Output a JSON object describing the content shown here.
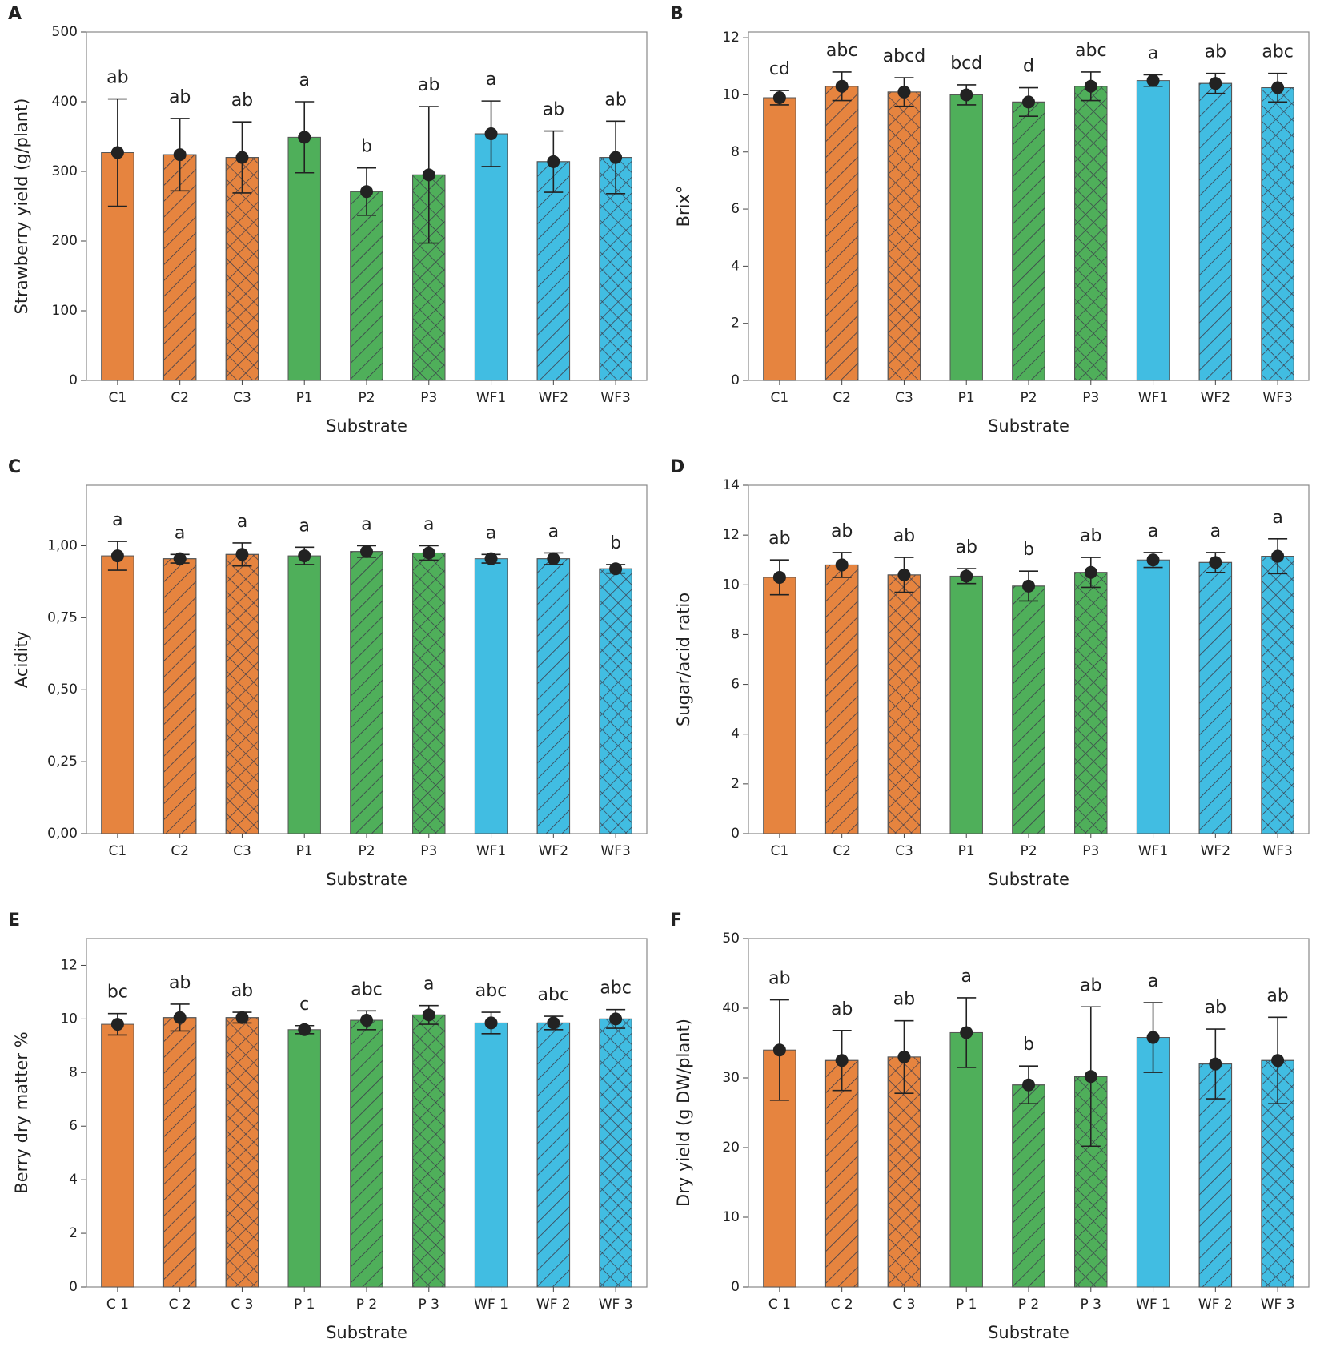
{
  "chart_data": [
    {
      "type": "bar",
      "panel": "A",
      "y_label": "Strawberry yield (g/plant)",
      "x_label": "Substrate",
      "categories": [
        "C1",
        "C2",
        "C3",
        "P1",
        "P2",
        "P3",
        "WF1",
        "WF2",
        "WF3"
      ],
      "values": [
        327,
        324,
        320,
        349,
        271,
        295,
        354,
        314,
        320
      ],
      "errors": [
        77,
        52,
        51,
        51,
        34,
        98,
        47,
        44,
        52
      ],
      "annotations": [
        "ab",
        "ab",
        "ab",
        "a",
        "b",
        "ab",
        "a",
        "ab",
        "ab"
      ],
      "colors": [
        "#e6843f",
        "#e6843f",
        "#e6843f",
        "#4faf5a",
        "#4faf5a",
        "#4faf5a",
        "#41bde2",
        "#41bde2",
        "#41bde2"
      ],
      "hatch": [
        "none",
        "diagonal",
        "cross",
        "none",
        "diagonal",
        "cross",
        "none",
        "diagonal",
        "cross"
      ],
      "ylim": [
        0,
        500
      ],
      "yticks": [
        0,
        100,
        200,
        300,
        400,
        500
      ]
    },
    {
      "type": "bar",
      "panel": "B",
      "y_label": "Brix°",
      "x_label": "Substrate",
      "categories": [
        "C1",
        "C2",
        "C3",
        "P1",
        "P2",
        "P3",
        "WF1",
        "WF2",
        "WF3"
      ],
      "values": [
        9.9,
        10.3,
        10.1,
        10.0,
        9.75,
        10.3,
        10.5,
        10.4,
        10.25
      ],
      "errors": [
        0.25,
        0.5,
        0.5,
        0.35,
        0.5,
        0.5,
        0.2,
        0.35,
        0.5
      ],
      "annotations": [
        "cd",
        "abc",
        "abcd",
        "bcd",
        "d",
        "abc",
        "a",
        "ab",
        "abc"
      ],
      "colors": [
        "#e6843f",
        "#e6843f",
        "#e6843f",
        "#4faf5a",
        "#4faf5a",
        "#4faf5a",
        "#41bde2",
        "#41bde2",
        "#41bde2"
      ],
      "hatch": [
        "none",
        "diagonal",
        "cross",
        "none",
        "diagonal",
        "cross",
        "none",
        "diagonal",
        "cross"
      ],
      "ylim": [
        0,
        12.2
      ],
      "yticks": [
        0,
        2,
        4,
        6,
        8,
        10,
        12
      ]
    },
    {
      "type": "bar",
      "panel": "C",
      "y_label": "Acidity",
      "x_label": "Substrate",
      "categories": [
        "C1",
        "C2",
        "C3",
        "P1",
        "P2",
        "P3",
        "WF1",
        "WF2",
        "WF3"
      ],
      "values": [
        0.965,
        0.955,
        0.97,
        0.965,
        0.98,
        0.975,
        0.955,
        0.955,
        0.92
      ],
      "errors": [
        0.05,
        0.015,
        0.04,
        0.03,
        0.02,
        0.025,
        0.015,
        0.02,
        0.015
      ],
      "annotations": [
        "a",
        "a",
        "a",
        "a",
        "a",
        "a",
        "a",
        "a",
        "b"
      ],
      "colors": [
        "#e6843f",
        "#e6843f",
        "#e6843f",
        "#4faf5a",
        "#4faf5a",
        "#4faf5a",
        "#41bde2",
        "#41bde2",
        "#41bde2"
      ],
      "hatch": [
        "none",
        "diagonal",
        "cross",
        "none",
        "diagonal",
        "cross",
        "none",
        "diagonal",
        "cross"
      ],
      "ylim": [
        0,
        1.21
      ],
      "yticks": [
        {
          "value": 0,
          "label": "0,00"
        },
        {
          "value": 0.25,
          "label": "0,25"
        },
        {
          "value": 0.5,
          "label": "0,50"
        },
        {
          "value": 0.75,
          "label": "0,75"
        },
        {
          "value": 1,
          "label": "1,00"
        }
      ]
    },
    {
      "type": "bar",
      "panel": "D",
      "y_label": "Sugar/acid ratio",
      "x_label": "Substrate",
      "categories": [
        "C1",
        "C2",
        "C3",
        "P1",
        "P2",
        "P3",
        "WF1",
        "WF2",
        "WF3"
      ],
      "values": [
        10.3,
        10.8,
        10.4,
        10.35,
        9.95,
        10.5,
        11.0,
        10.9,
        11.15
      ],
      "errors": [
        0.7,
        0.5,
        0.7,
        0.3,
        0.6,
        0.6,
        0.3,
        0.4,
        0.7
      ],
      "annotations": [
        "ab",
        "ab",
        "ab",
        "ab",
        "b",
        "ab",
        "a",
        "a",
        "a"
      ],
      "colors": [
        "#e6843f",
        "#e6843f",
        "#e6843f",
        "#4faf5a",
        "#4faf5a",
        "#4faf5a",
        "#41bde2",
        "#41bde2",
        "#41bde2"
      ],
      "hatch": [
        "none",
        "diagonal",
        "cross",
        "none",
        "diagonal",
        "cross",
        "none",
        "diagonal",
        "cross"
      ],
      "ylim": [
        0,
        14
      ],
      "yticks": [
        0,
        2,
        4,
        6,
        8,
        10,
        12,
        14
      ]
    },
    {
      "type": "bar",
      "panel": "E",
      "y_label": "Berry dry matter %",
      "x_label": "Substrate",
      "categories": [
        "C 1",
        "C 2",
        "C 3",
        "P 1",
        "P 2",
        "P 3",
        "WF 1",
        "WF 2",
        "WF 3"
      ],
      "values": [
        9.8,
        10.05,
        10.05,
        9.6,
        9.95,
        10.15,
        9.85,
        9.85,
        10.0
      ],
      "errors": [
        0.4,
        0.5,
        0.2,
        0.15,
        0.35,
        0.35,
        0.4,
        0.25,
        0.35
      ],
      "annotations": [
        "bc",
        "ab",
        "ab",
        "c",
        "abc",
        "a",
        "abc",
        "abc",
        "abc"
      ],
      "colors": [
        "#e6843f",
        "#e6843f",
        "#e6843f",
        "#4faf5a",
        "#4faf5a",
        "#4faf5a",
        "#41bde2",
        "#41bde2",
        "#41bde2"
      ],
      "hatch": [
        "none",
        "diagonal",
        "cross",
        "none",
        "diagonal",
        "cross",
        "none",
        "diagonal",
        "cross"
      ],
      "ylim": [
        0,
        13
      ],
      "yticks": [
        0,
        2,
        4,
        6,
        8,
        10,
        12
      ]
    },
    {
      "type": "bar",
      "panel": "F",
      "y_label": "Dry yield (g DW/plant)",
      "x_label": "Substrate",
      "categories": [
        "C 1",
        "C 2",
        "C 3",
        "P 1",
        "P 2",
        "P 3",
        "WF 1",
        "WF 2",
        "WF 3"
      ],
      "values": [
        34,
        32.5,
        33,
        36.5,
        29,
        30.2,
        35.8,
        32,
        32.5
      ],
      "errors": [
        7.2,
        4.3,
        5.2,
        5,
        2.7,
        10,
        5,
        5,
        6.2
      ],
      "annotations": [
        "ab",
        "ab",
        "ab",
        "a",
        "b",
        "ab",
        "a",
        "ab",
        "ab"
      ],
      "colors": [
        "#e6843f",
        "#e6843f",
        "#e6843f",
        "#4faf5a",
        "#4faf5a",
        "#4faf5a",
        "#41bde2",
        "#41bde2",
        "#41bde2"
      ],
      "hatch": [
        "none",
        "diagonal",
        "cross",
        "none",
        "diagonal",
        "cross",
        "none",
        "diagonal",
        "cross"
      ],
      "ylim": [
        0,
        50
      ],
      "yticks": [
        0,
        10,
        20,
        30,
        40,
        50
      ]
    }
  ]
}
